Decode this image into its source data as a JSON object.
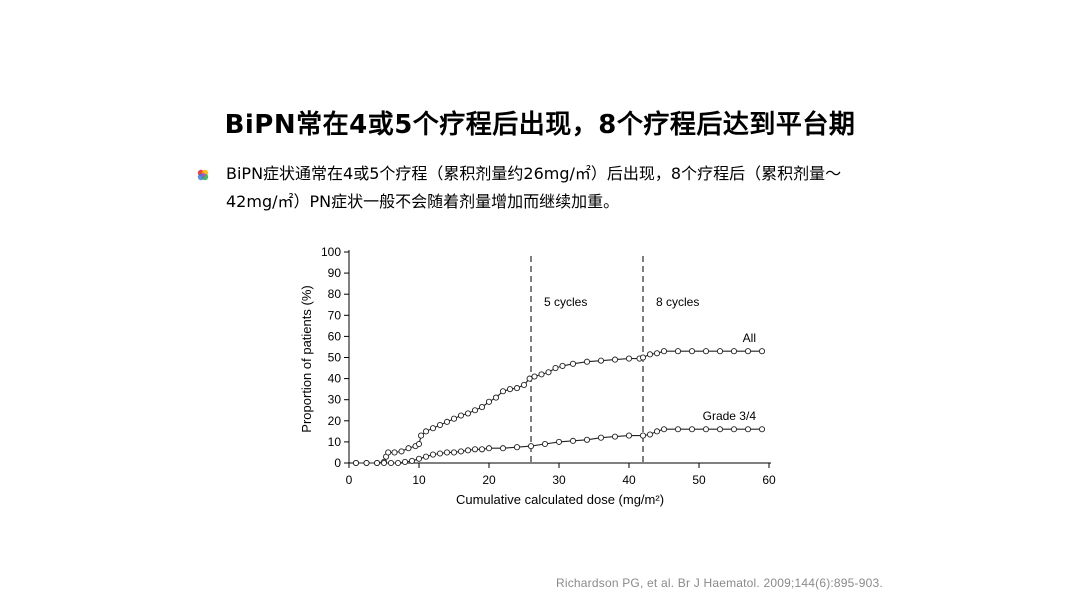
{
  "slide": {
    "title": "BiPN常在4或5个疗程后出现，8个疗程后达到平台期",
    "bullet": "BiPN症状通常在4或5个疗程（累积剂量约26mg/㎡）后出现，8个疗程后（累积剂量～42mg/㎡）PN症状一般不会随着剂量增加而继续加重。",
    "bullet_icon": "multicolor-bullet-icon",
    "citation": "Richardson PG, et al. Br J Haematol. 2009;144(6):895-903."
  },
  "chart_data": {
    "type": "line",
    "xlabel": "Cumulative calculated dose (mg/m²)",
    "ylabel": "Proportion of patients (%)",
    "xlim": [
      0,
      60
    ],
    "ylim": [
      0,
      100
    ],
    "xticks": [
      0,
      10,
      20,
      30,
      40,
      50,
      60
    ],
    "yticks": [
      0,
      10,
      20,
      30,
      40,
      50,
      60,
      70,
      80,
      90,
      100
    ],
    "grid": false,
    "markers": "open circles",
    "vlines": [
      {
        "x": 26,
        "label": "5 cycles",
        "style": "dashed"
      },
      {
        "x": 42,
        "label": "8 cycles",
        "style": "dashed"
      }
    ],
    "series": [
      {
        "name": "All",
        "points": [
          [
            1,
            0
          ],
          [
            2.5,
            0
          ],
          [
            4,
            0
          ],
          [
            5,
            0.5
          ],
          [
            5.3,
            3
          ],
          [
            5.6,
            5
          ],
          [
            6.5,
            5
          ],
          [
            7.5,
            5.5
          ],
          [
            8.5,
            7
          ],
          [
            9.5,
            8
          ],
          [
            10,
            9
          ],
          [
            10.3,
            13
          ],
          [
            11,
            15
          ],
          [
            12,
            16.5
          ],
          [
            13,
            18
          ],
          [
            14,
            19.5
          ],
          [
            15,
            21
          ],
          [
            16,
            22.5
          ],
          [
            17,
            23.5
          ],
          [
            18,
            25
          ],
          [
            19,
            26.5
          ],
          [
            20,
            29
          ],
          [
            21,
            31
          ],
          [
            22,
            34
          ],
          [
            23,
            35
          ],
          [
            24,
            35.5
          ],
          [
            25,
            37
          ],
          [
            25.8,
            40
          ],
          [
            26.5,
            41
          ],
          [
            27.5,
            42
          ],
          [
            28.5,
            43
          ],
          [
            29.5,
            45
          ],
          [
            30.5,
            46
          ],
          [
            32,
            47
          ],
          [
            34,
            48
          ],
          [
            36,
            48.5
          ],
          [
            38,
            49
          ],
          [
            40,
            49.5
          ],
          [
            41.5,
            49.5
          ],
          [
            42,
            50
          ],
          [
            43,
            51.5
          ],
          [
            44,
            52
          ],
          [
            45,
            53
          ],
          [
            47,
            53
          ],
          [
            49,
            53
          ],
          [
            51,
            53
          ],
          [
            53,
            53
          ],
          [
            55,
            53
          ],
          [
            57,
            53
          ],
          [
            59,
            53
          ]
        ]
      },
      {
        "name": "Grade 3/4",
        "points": [
          [
            1,
            0
          ],
          [
            2.5,
            0
          ],
          [
            4,
            0
          ],
          [
            5,
            0
          ],
          [
            6,
            0
          ],
          [
            7,
            0
          ],
          [
            8,
            0.5
          ],
          [
            9,
            1
          ],
          [
            10,
            2
          ],
          [
            11,
            3
          ],
          [
            12,
            4
          ],
          [
            13,
            4.5
          ],
          [
            14,
            5
          ],
          [
            15,
            5
          ],
          [
            16,
            5.5
          ],
          [
            17,
            6
          ],
          [
            18,
            6.5
          ],
          [
            19,
            6.5
          ],
          [
            20,
            7
          ],
          [
            22,
            7
          ],
          [
            24,
            7.5
          ],
          [
            26,
            8
          ],
          [
            28,
            9
          ],
          [
            30,
            10
          ],
          [
            32,
            10.5
          ],
          [
            34,
            11
          ],
          [
            36,
            12
          ],
          [
            38,
            12.5
          ],
          [
            40,
            13
          ],
          [
            42,
            13
          ],
          [
            43,
            13.5
          ],
          [
            44,
            15
          ],
          [
            45,
            16
          ],
          [
            47,
            16
          ],
          [
            49,
            16
          ],
          [
            51,
            16
          ],
          [
            53,
            16
          ],
          [
            55,
            16
          ],
          [
            57,
            16
          ],
          [
            59,
            16
          ]
        ]
      }
    ]
  }
}
